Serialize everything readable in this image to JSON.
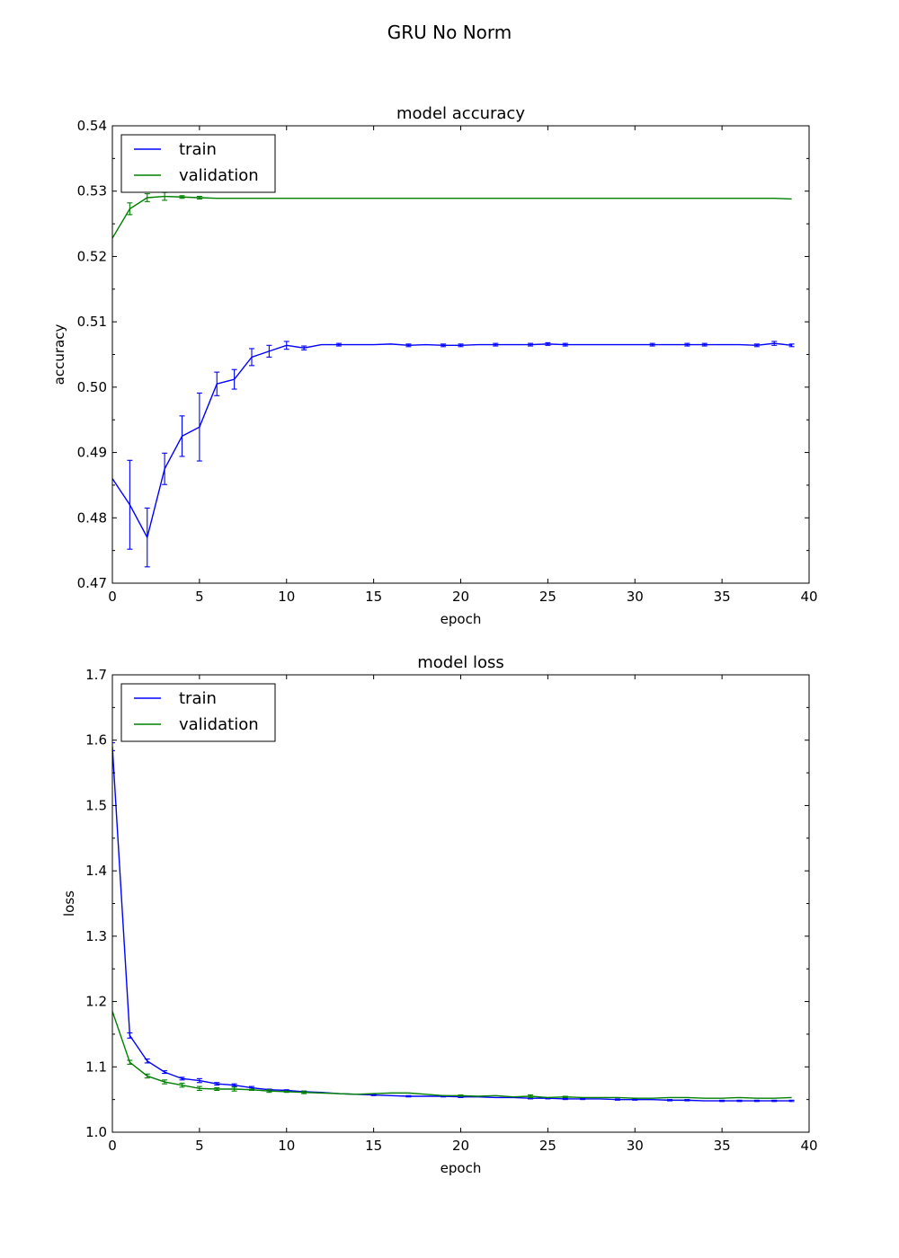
{
  "figure": {
    "title": "GRU No Norm"
  },
  "chart_data": [
    {
      "type": "line",
      "title": "model accuracy",
      "xlabel": "epoch",
      "ylabel": "accuracy",
      "xlim": [
        0,
        40
      ],
      "ylim": [
        0.47,
        0.54
      ],
      "xticks": [
        0,
        5,
        10,
        15,
        20,
        25,
        30,
        35,
        40
      ],
      "yticks": [
        0.47,
        0.48,
        0.49,
        0.5,
        0.51,
        0.52,
        0.53,
        0.54
      ],
      "ytick_labels": [
        "0.47",
        "0.48",
        "0.49",
        "0.50",
        "0.51",
        "0.52",
        "0.53",
        "0.54"
      ],
      "grid": false,
      "legend": "top-left",
      "series": [
        {
          "name": "train",
          "color": "#0000ff",
          "x": [
            0,
            1,
            2,
            3,
            4,
            5,
            6,
            7,
            8,
            9,
            10,
            11,
            12,
            13,
            14,
            15,
            16,
            17,
            18,
            19,
            20,
            21,
            22,
            23,
            24,
            25,
            26,
            27,
            28,
            29,
            30,
            31,
            32,
            33,
            34,
            35,
            36,
            37,
            38,
            39
          ],
          "y": [
            0.486,
            0.482,
            0.477,
            0.4875,
            0.4925,
            0.4939,
            0.5005,
            0.5012,
            0.5046,
            0.5055,
            0.5064,
            0.506,
            0.5065,
            0.5065,
            0.5065,
            0.5065,
            0.5066,
            0.5064,
            0.5065,
            0.5064,
            0.5064,
            0.5065,
            0.5065,
            0.5065,
            0.5065,
            0.5066,
            0.5065,
            0.5065,
            0.5065,
            0.5065,
            0.5065,
            0.5065,
            0.5065,
            0.5065,
            0.5065,
            0.5065,
            0.5065,
            0.5064,
            0.5067,
            0.5064
          ],
          "err": [
            0,
            0.0068,
            0.0045,
            0.0024,
            0.0031,
            0.0052,
            0.0018,
            0.0015,
            0.0013,
            0.0009,
            0.0006,
            0.0003,
            0,
            0.0002,
            0,
            0,
            0,
            0.0002,
            0,
            0.0002,
            0.0002,
            0,
            0.0002,
            0,
            0.0002,
            0.0002,
            0.0002,
            0,
            0,
            0,
            0,
            0.0002,
            0,
            0.0002,
            0.0002,
            0,
            0,
            0.0002,
            0.0003,
            0.0002
          ]
        },
        {
          "name": "validation",
          "color": "#008000",
          "x": [
            0,
            1,
            2,
            3,
            4,
            5,
            6,
            7,
            8,
            9,
            10,
            11,
            12,
            13,
            14,
            15,
            16,
            17,
            18,
            19,
            20,
            21,
            22,
            23,
            24,
            25,
            26,
            27,
            28,
            29,
            30,
            31,
            32,
            33,
            34,
            35,
            36,
            37,
            38,
            39
          ],
          "y": [
            0.5228,
            0.5273,
            0.529,
            0.5292,
            0.5291,
            0.529,
            0.5289,
            0.5289,
            0.5289,
            0.5289,
            0.5289,
            0.5289,
            0.5289,
            0.5289,
            0.5289,
            0.5289,
            0.5289,
            0.5289,
            0.5289,
            0.5289,
            0.5289,
            0.5289,
            0.5289,
            0.5289,
            0.5289,
            0.5289,
            0.5289,
            0.5289,
            0.5289,
            0.5289,
            0.5289,
            0.5289,
            0.5289,
            0.5289,
            0.5289,
            0.5289,
            0.5289,
            0.5289,
            0.5289,
            0.5288
          ],
          "err": [
            0,
            0.0009,
            0.0006,
            0.0006,
            0.0002,
            0.0002,
            0,
            0,
            0,
            0,
            0,
            0,
            0,
            0,
            0,
            0,
            0,
            0,
            0,
            0,
            0,
            0,
            0,
            0,
            0,
            0,
            0,
            0,
            0,
            0,
            0,
            0,
            0,
            0,
            0,
            0,
            0,
            0,
            0,
            0
          ]
        }
      ]
    },
    {
      "type": "line",
      "title": "model loss",
      "xlabel": "epoch",
      "ylabel": "loss",
      "xlim": [
        0,
        40
      ],
      "ylim": [
        1.0,
        1.7
      ],
      "xticks": [
        0,
        5,
        10,
        15,
        20,
        25,
        30,
        35,
        40
      ],
      "yticks": [
        1.0,
        1.1,
        1.2,
        1.3,
        1.4,
        1.5,
        1.6,
        1.7
      ],
      "ytick_labels": [
        "1.0",
        "1.1",
        "1.2",
        "1.3",
        "1.4",
        "1.5",
        "1.6",
        "1.7"
      ],
      "grid": false,
      "legend": "top-left",
      "series": [
        {
          "name": "train",
          "color": "#0000ff",
          "x": [
            0,
            1,
            2,
            3,
            4,
            5,
            6,
            7,
            8,
            9,
            10,
            11,
            12,
            13,
            14,
            15,
            16,
            17,
            18,
            19,
            20,
            21,
            22,
            23,
            24,
            25,
            26,
            27,
            28,
            29,
            30,
            31,
            32,
            33,
            34,
            35,
            36,
            37,
            38,
            39
          ],
          "y": [
            1.59,
            1.148,
            1.109,
            1.092,
            1.082,
            1.079,
            1.074,
            1.072,
            1.068,
            1.065,
            1.064,
            1.062,
            1.061,
            1.059,
            1.058,
            1.057,
            1.056,
            1.055,
            1.055,
            1.055,
            1.054,
            1.054,
            1.053,
            1.053,
            1.052,
            1.052,
            1.051,
            1.051,
            1.051,
            1.05,
            1.05,
            1.05,
            1.049,
            1.049,
            1.048,
            1.048,
            1.048,
            1.048,
            1.048,
            1.048
          ],
          "err": [
            0.006,
            0.004,
            0.003,
            0.002,
            0.002,
            0.003,
            0.002,
            0.002,
            0.002,
            0.001,
            0.001,
            0.001,
            0,
            0,
            0,
            0.001,
            0,
            0.001,
            0,
            0.001,
            0.001,
            0,
            0,
            0,
            0.001,
            0.001,
            0.001,
            0.001,
            0,
            0.001,
            0.001,
            0,
            0.001,
            0.001,
            0,
            0.001,
            0.001,
            0.001,
            0.001,
            0.001
          ]
        },
        {
          "name": "validation",
          "color": "#008000",
          "x": [
            0,
            1,
            2,
            3,
            4,
            5,
            6,
            7,
            8,
            9,
            10,
            11,
            12,
            13,
            14,
            15,
            16,
            17,
            18,
            19,
            20,
            21,
            22,
            23,
            24,
            25,
            26,
            27,
            28,
            29,
            30,
            31,
            32,
            33,
            34,
            35,
            36,
            37,
            38,
            39
          ],
          "y": [
            1.185,
            1.107,
            1.086,
            1.077,
            1.072,
            1.067,
            1.066,
            1.066,
            1.065,
            1.063,
            1.062,
            1.061,
            1.06,
            1.059,
            1.058,
            1.059,
            1.06,
            1.06,
            1.058,
            1.056,
            1.056,
            1.055,
            1.056,
            1.054,
            1.055,
            1.053,
            1.054,
            1.053,
            1.053,
            1.053,
            1.052,
            1.052,
            1.053,
            1.053,
            1.052,
            1.052,
            1.053,
            1.052,
            1.052,
            1.053
          ],
          "err": [
            0,
            0.003,
            0.003,
            0.003,
            0.003,
            0.003,
            0.002,
            0.003,
            0.001,
            0.002,
            0.001,
            0.002,
            0,
            0,
            0,
            0,
            0,
            0,
            0,
            0,
            0.001,
            0,
            0,
            0,
            0.002,
            0,
            0.001,
            0,
            0,
            0,
            0,
            0,
            0,
            0,
            0,
            0,
            0,
            0,
            0,
            0
          ]
        }
      ]
    }
  ]
}
